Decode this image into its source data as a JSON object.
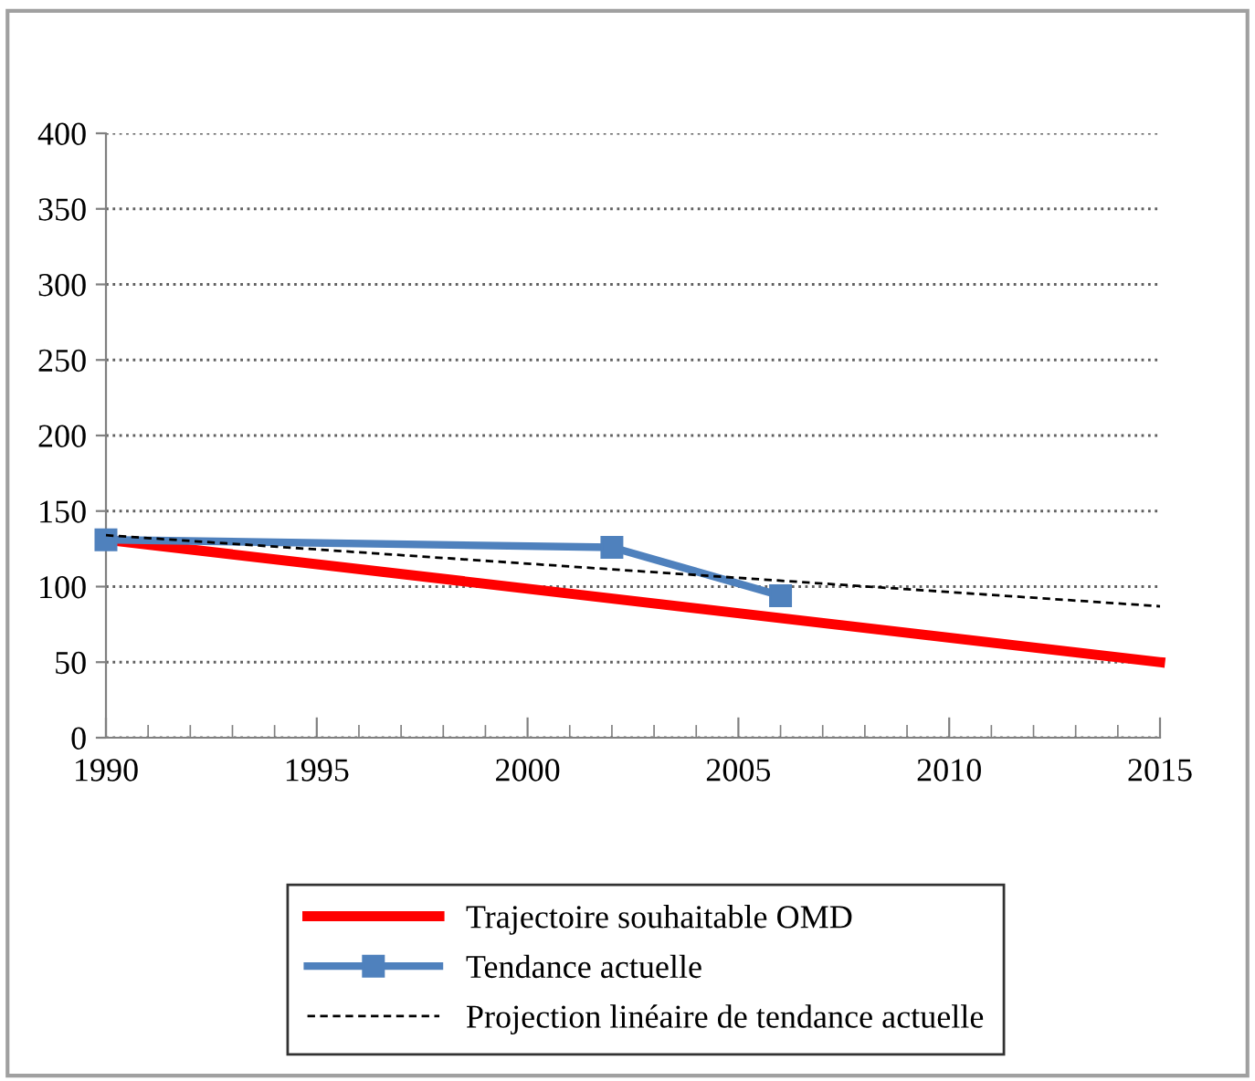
{
  "chart_data": {
    "type": "line",
    "series": [
      {
        "name": "Trajectoire souhaitable OMD",
        "color": "#ff0000",
        "x": [
          1990,
          2015
        ],
        "values": [
          131,
          50
        ],
        "marker": "none",
        "line_style": "solid"
      },
      {
        "name": "Tendance actuelle",
        "color": "#4f81bd",
        "x": [
          1990,
          2002,
          2006
        ],
        "values": [
          131,
          126,
          94
        ],
        "marker": "square",
        "line_style": "solid"
      },
      {
        "name": "Projection linéaire de tendance actuelle",
        "color": "#000000",
        "x": [
          1990,
          2015
        ],
        "values": [
          134,
          87
        ],
        "marker": "none",
        "line_style": "dashed"
      }
    ],
    "xlim": [
      1990,
      2015
    ],
    "xticks": [
      1990,
      {
        "value": 1991,
        "label": null
      },
      {
        "value": 1992,
        "label": null
      },
      {
        "value": 1993,
        "label": null
      },
      {
        "value": 1994,
        "label": null
      },
      1995,
      {
        "value": 1996,
        "label": null
      },
      {
        "value": 1997,
        "label": null
      },
      {
        "value": 1998,
        "label": null
      },
      {
        "value": 1999,
        "label": null
      },
      2000,
      {
        "value": 2001,
        "label": null
      },
      {
        "value": 2002,
        "label": null
      },
      {
        "value": 2003,
        "label": null
      },
      {
        "value": 2004,
        "label": null
      },
      2005,
      {
        "value": 2006,
        "label": null
      },
      {
        "value": 2007,
        "label": null
      },
      {
        "value": 2008,
        "label": null
      },
      {
        "value": 2009,
        "label": null
      },
      2010,
      {
        "value": 2011,
        "label": null
      },
      {
        "value": 2012,
        "label": null
      },
      {
        "value": 2013,
        "label": null
      },
      {
        "value": 2014,
        "label": null
      },
      2015
    ],
    "ylim": [
      0,
      400
    ],
    "yticks": [
      0,
      50,
      100,
      150,
      200,
      250,
      300,
      350,
      400
    ],
    "grid": "y",
    "legend": "bottom"
  }
}
